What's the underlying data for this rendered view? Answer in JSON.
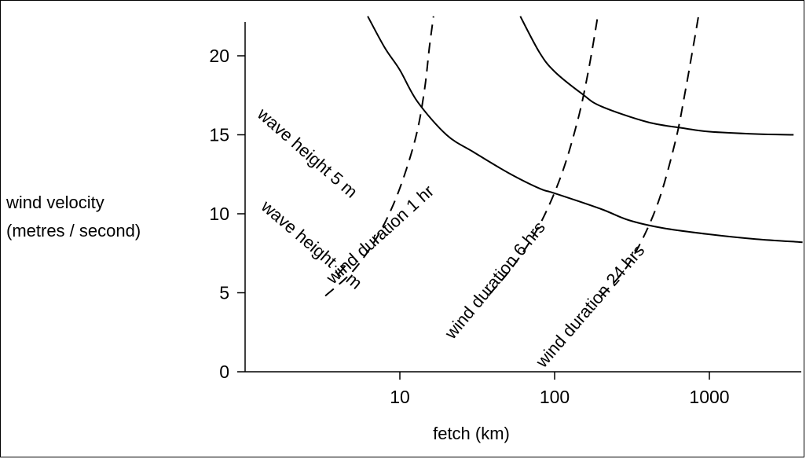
{
  "chart_data": {
    "type": "line",
    "title": "",
    "xlabel": "fetch (km)",
    "ylabel_line1": "wind velocity",
    "ylabel_line2": "(metres / second)",
    "x_scale": "log",
    "xlim": [
      1,
      4000
    ],
    "ylim": [
      0,
      22.5
    ],
    "x_ticks": [
      10,
      100,
      1000
    ],
    "x_tick_labels": [
      "10",
      "100",
      "1000"
    ],
    "y_ticks": [
      0,
      5,
      10,
      15,
      20
    ],
    "y_tick_labels": [
      "0",
      "5",
      "10",
      "15",
      "20"
    ],
    "grid": false,
    "series": [
      {
        "name": "wave height 1 m",
        "style": "solid",
        "points": [
          [
            6.2,
            22.5
          ],
          [
            8,
            20.5
          ],
          [
            10,
            19.1
          ],
          [
            13,
            17.1
          ],
          [
            20,
            15.0
          ],
          [
            30,
            13.9
          ],
          [
            50,
            12.6
          ],
          [
            80,
            11.6
          ],
          [
            100,
            11.3
          ],
          [
            200,
            10.3
          ],
          [
            300,
            9.6
          ],
          [
            500,
            9.1
          ],
          [
            1000,
            8.7
          ],
          [
            2000,
            8.4
          ],
          [
            4000,
            8.2
          ]
        ],
        "label_text": "wave height 1 m",
        "label_at": [
          1.25,
          10.35
        ]
      },
      {
        "name": "wave height 5 m",
        "style": "solid",
        "points": [
          [
            60,
            22.5
          ],
          [
            80,
            20.2
          ],
          [
            100,
            19.0
          ],
          [
            150,
            17.6
          ],
          [
            200,
            16.8
          ],
          [
            400,
            15.8
          ],
          [
            700,
            15.4
          ],
          [
            1000,
            15.2
          ],
          [
            2000,
            15.05
          ],
          [
            3500,
            15.0
          ]
        ],
        "label_text": "wave height 5 m",
        "label_at": [
          1.18,
          16.2
        ]
      },
      {
        "name": "wind duration 1 hr",
        "style": "dashed",
        "points": [
          [
            3.3,
            4.8
          ],
          [
            5,
            6.4
          ],
          [
            7,
            8.4
          ],
          [
            9,
            10.5
          ],
          [
            11,
            12.8
          ],
          [
            13,
            15.3
          ],
          [
            14.5,
            18.0
          ],
          [
            15.5,
            20.5
          ],
          [
            16.5,
            22.5
          ]
        ],
        "label_text": "wind duration 1 hr",
        "label_at": [
          3.7,
          5.5
        ]
      },
      {
        "name": "wind duration 6 hrs",
        "style": "dashed",
        "points": [
          [
            38,
            4.9
          ],
          [
            55,
            6.8
          ],
          [
            80,
            9.3
          ],
          [
            110,
            12.4
          ],
          [
            140,
            15.8
          ],
          [
            165,
            19.0
          ],
          [
            190,
            22.5
          ]
        ],
        "label_text": "wind duration 6 hrs",
        "label_at": [
          22,
          2.0
        ]
      },
      {
        "name": "wind duration 24 hrs",
        "style": "dashed",
        "points": [
          [
            200,
            4.8
          ],
          [
            300,
            6.8
          ],
          [
            450,
            10.3
          ],
          [
            600,
            14.5
          ],
          [
            700,
            17.8
          ],
          [
            800,
            21.0
          ],
          [
            850,
            22.5
          ]
        ],
        "label_text": "wind duration 24 hrs",
        "label_at": [
          85,
          0.2
        ]
      }
    ]
  }
}
